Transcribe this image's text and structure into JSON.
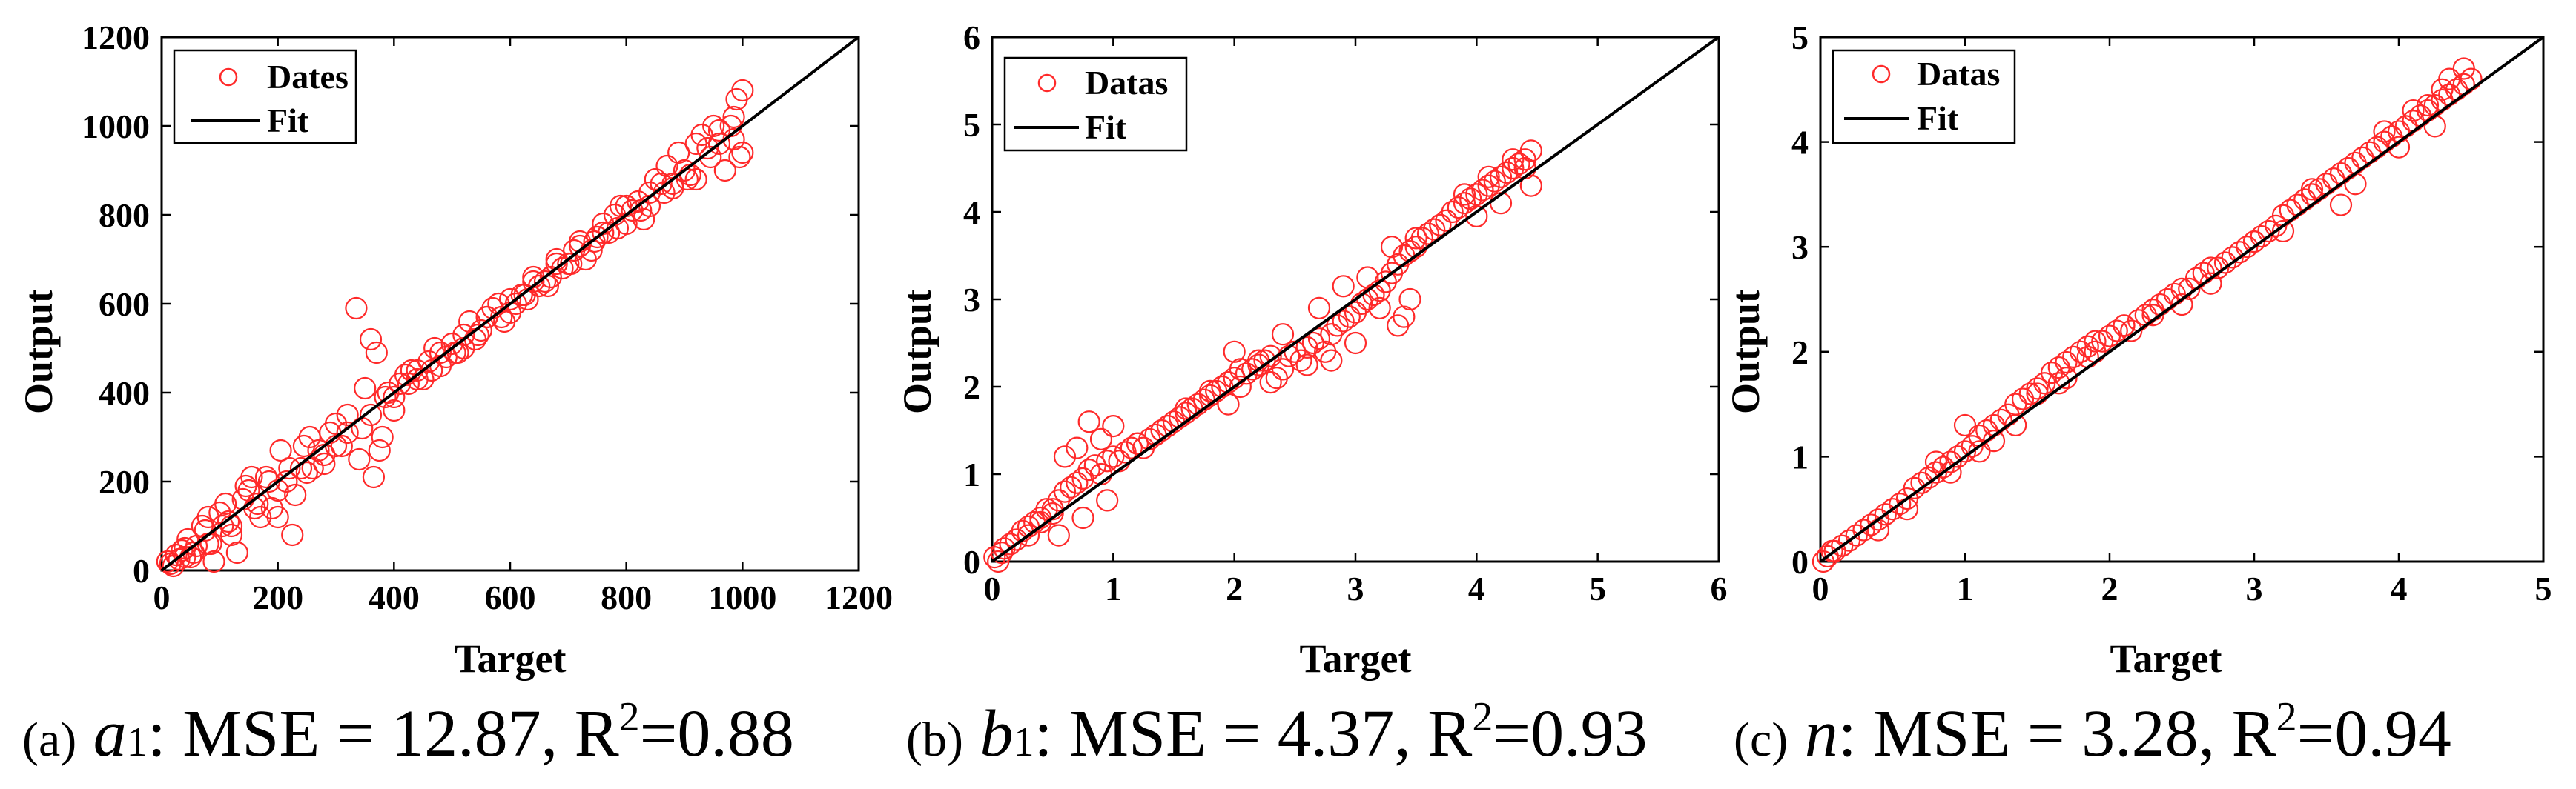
{
  "chart_data": [
    {
      "type": "scatter",
      "panel": "a",
      "xlabel": "Target",
      "ylabel": "Output",
      "xlim": [
        0,
        1200
      ],
      "ylim": [
        0,
        1200
      ],
      "xticks": [
        "0",
        "200",
        "400",
        "600",
        "800",
        "1000",
        "1200"
      ],
      "yticks": [
        "0",
        "200",
        "400",
        "600",
        "800",
        "1000",
        "1200"
      ],
      "legend": {
        "position": "top-left",
        "data_label": "Dates",
        "fit_label": "Fit"
      },
      "fit_line": {
        "x": [
          0,
          1200
        ],
        "y": [
          0,
          1200
        ]
      },
      "series": [
        {
          "name": "Dates",
          "x": [
            10,
            25,
            40,
            55,
            70,
            85,
            100,
            115,
            130,
            150,
            165,
            180,
            200,
            215,
            230,
            245,
            260,
            280,
            300,
            320,
            335,
            350,
            360,
            370,
            380,
            400,
            420,
            440,
            460,
            480,
            500,
            520,
            540,
            560,
            580,
            600,
            620,
            640,
            660,
            680,
            700,
            720,
            740,
            760,
            780,
            800,
            820,
            840,
            860,
            880,
            900,
            920,
            940,
            960,
            980,
            990,
            1000,
            995,
            985,
            970,
            950,
            930,
            910,
            890,
            870,
            850,
            830,
            810,
            790,
            770,
            750,
            730,
            710,
            690,
            670,
            650,
            630,
            610,
            590,
            570,
            550,
            530,
            510,
            490,
            470,
            450,
            430,
            410,
            390,
            375,
            365,
            340,
            310,
            290,
            270,
            250,
            225,
            205,
            190,
            170,
            155,
            140,
            120,
            105,
            90,
            75,
            60,
            45,
            30,
            20,
            35,
            50,
            80,
            110,
            145,
            185,
            220,
            255,
            300,
            345,
            385,
            425,
            465,
            505,
            545,
            585,
            625,
            665,
            705,
            745,
            785,
            825,
            865,
            905,
            945,
            985,
            1000,
            960,
            920,
            880,
            840,
            800,
            760,
            720,
            680,
            640,
            600,
            560,
            520,
            480,
            440,
            400,
            360,
            320,
            280,
            240,
            200,
            160,
            120,
            80,
            40,
            15
          ],
          "y": [
            20,
            35,
            50,
            40,
            100,
            60,
            130,
            110,
            40,
            180,
            150,
            210,
            120,
            200,
            170,
            280,
            230,
            240,
            330,
            350,
            590,
            410,
            520,
            490,
            300,
            360,
            440,
            430,
            470,
            460,
            510,
            500,
            520,
            570,
            600,
            580,
            620,
            660,
            650,
            700,
            690,
            730,
            720,
            760,
            800,
            780,
            830,
            820,
            870,
            860,
            900,
            880,
            950,
            960,
            1000,
            1060,
            1080,
            930,
            970,
            900,
            1000,
            980,
            890,
            940,
            910,
            880,
            790,
            810,
            820,
            760,
            750,
            700,
            720,
            680,
            660,
            640,
            610,
            600,
            560,
            590,
            540,
            560,
            490,
            480,
            500,
            430,
            450,
            420,
            400,
            270,
            210,
            250,
            280,
            310,
            270,
            220,
            80,
            270,
            140,
            120,
            210,
            160,
            80,
            100,
            20,
            90,
            55,
            70,
            25,
            10,
            45,
            30,
            120,
            150,
            190,
            200,
            230,
            300,
            280,
            320,
            390,
            420,
            450,
            490,
            530,
            570,
            620,
            640,
            690,
            740,
            770,
            810,
            850,
            880,
            930,
            1020,
            940,
            990,
            960,
            870,
            850,
            820,
            780,
            740,
            690,
            650,
            610,
            570,
            530,
            490,
            450,
            390,
            350,
            310,
            260,
            230,
            180,
            140,
            100,
            60,
            30,
            15
          ]
        }
      ]
    },
    {
      "type": "scatter",
      "panel": "b",
      "xlabel": "Target",
      "ylabel": "Output",
      "xlim": [
        0,
        6
      ],
      "ylim": [
        0,
        6
      ],
      "xticks": [
        "0",
        "1",
        "2",
        "3",
        "4",
        "5",
        "6"
      ],
      "yticks": [
        "0",
        "1",
        "2",
        "3",
        "4",
        "5",
        "6"
      ],
      "legend": {
        "position": "top-left",
        "data_label": "Datas",
        "fit_label": "Fit"
      },
      "fit_line": {
        "x": [
          0,
          6
        ],
        "y": [
          0,
          6
        ]
      },
      "series": [
        {
          "name": "Datas",
          "x": [
            0.02,
            0.05,
            0.08,
            0.1,
            0.15,
            0.2,
            0.25,
            0.3,
            0.35,
            0.4,
            0.45,
            0.5,
            0.55,
            0.6,
            0.65,
            0.7,
            0.75,
            0.8,
            0.85,
            0.9,
            0.95,
            1.0,
            1.05,
            1.1,
            1.15,
            1.2,
            1.25,
            1.3,
            1.35,
            1.4,
            1.45,
            1.5,
            1.55,
            1.6,
            1.65,
            1.7,
            1.75,
            1.8,
            1.85,
            1.9,
            1.95,
            2.0,
            2.05,
            2.1,
            2.15,
            2.2,
            2.25,
            2.3,
            2.35,
            2.4,
            2.45,
            2.5,
            2.55,
            2.6,
            2.65,
            2.7,
            2.75,
            2.8,
            2.85,
            2.9,
            2.95,
            3.0,
            3.05,
            3.1,
            3.15,
            3.2,
            3.25,
            3.3,
            3.35,
            3.4,
            3.45,
            3.5,
            3.55,
            3.6,
            3.65,
            3.7,
            3.75,
            3.8,
            3.85,
            3.9,
            3.95,
            4.0,
            4.05,
            4.1,
            4.15,
            4.2,
            4.25,
            4.3,
            4.35,
            4.4,
            4.45,
            0.7,
            0.8,
            0.9,
            1.0,
            0.6,
            0.75,
            0.55,
            0.95,
            2.0,
            1.95,
            2.05,
            2.3,
            2.6,
            2.8,
            3.0,
            3.2,
            3.4,
            3.45,
            3.35,
            3.3,
            3.5,
            3.7,
            3.9,
            4.1,
            4.3,
            4.4,
            4.45,
            4.2,
            4.0,
            0.3,
            0.4,
            0.5,
            1.2,
            1.4,
            1.6,
            1.8,
            2.2,
            2.4,
            2.7,
            2.9,
            3.1
          ],
          "y": [
            0.05,
            0.0,
            0.1,
            0.15,
            0.2,
            0.25,
            0.35,
            0.4,
            0.45,
            0.5,
            0.6,
            0.55,
            0.7,
            0.8,
            0.85,
            0.9,
            0.95,
            1.05,
            1.1,
            1.0,
            1.15,
            1.2,
            1.15,
            1.25,
            1.3,
            1.35,
            1.3,
            1.4,
            1.45,
            1.5,
            1.55,
            1.6,
            1.65,
            1.7,
            1.75,
            1.8,
            1.85,
            1.9,
            1.95,
            2.0,
            2.05,
            2.1,
            2.0,
            2.15,
            2.2,
            2.25,
            2.3,
            2.05,
            2.1,
            2.2,
            2.35,
            2.4,
            2.3,
            2.45,
            2.5,
            2.55,
            2.4,
            2.6,
            2.7,
            2.75,
            2.8,
            2.85,
            2.95,
            3.0,
            3.05,
            3.1,
            3.2,
            3.3,
            3.4,
            3.5,
            3.55,
            3.6,
            3.7,
            3.75,
            3.8,
            3.85,
            3.9,
            4.0,
            4.05,
            4.1,
            4.15,
            4.2,
            4.25,
            4.3,
            4.35,
            4.4,
            4.45,
            4.5,
            4.55,
            4.6,
            4.7,
            1.3,
            1.6,
            1.4,
            1.55,
            1.2,
            0.5,
            0.3,
            0.7,
            2.4,
            1.8,
            2.2,
            2.35,
            2.25,
            2.3,
            2.5,
            2.9,
            2.8,
            3.0,
            2.7,
            3.6,
            3.7,
            3.85,
            4.2,
            4.4,
            4.6,
            4.5,
            4.3,
            4.1,
            3.95,
            0.3,
            0.45,
            0.6,
            1.35,
            1.5,
            1.75,
            1.95,
            2.3,
            2.6,
            2.9,
            3.15,
            3.25
          ]
        }
      ]
    },
    {
      "type": "scatter",
      "panel": "c",
      "xlabel": "Target",
      "ylabel": "Output",
      "xlim": [
        0,
        5
      ],
      "ylim": [
        0,
        5
      ],
      "xticks": [
        "0",
        "1",
        "2",
        "3",
        "4",
        "5"
      ],
      "yticks": [
        "0",
        "1",
        "2",
        "3",
        "4",
        "5"
      ],
      "legend": {
        "position": "top-left",
        "data_label": "Datas",
        "fit_label": "Fit"
      },
      "fit_line": {
        "x": [
          0,
          5
        ],
        "y": [
          0,
          5
        ]
      },
      "series": [
        {
          "name": "Datas",
          "x": [
            0.02,
            0.05,
            0.08,
            0.1,
            0.15,
            0.2,
            0.25,
            0.3,
            0.35,
            0.4,
            0.45,
            0.5,
            0.55,
            0.6,
            0.65,
            0.7,
            0.75,
            0.8,
            0.85,
            0.9,
            0.95,
            1.0,
            1.05,
            1.1,
            1.15,
            1.2,
            1.25,
            1.3,
            1.35,
            1.4,
            1.45,
            1.5,
            1.55,
            1.6,
            1.65,
            1.7,
            1.75,
            1.8,
            1.85,
            1.9,
            1.95,
            2.0,
            2.05,
            2.1,
            2.15,
            2.2,
            2.25,
            2.3,
            2.35,
            2.4,
            2.45,
            2.5,
            2.55,
            2.6,
            2.65,
            2.7,
            2.75,
            2.8,
            2.85,
            2.9,
            2.95,
            3.0,
            3.05,
            3.1,
            3.15,
            3.2,
            3.25,
            3.3,
            3.35,
            3.4,
            3.45,
            3.5,
            3.55,
            3.6,
            3.65,
            3.7,
            3.75,
            3.8,
            3.85,
            3.9,
            3.95,
            4.0,
            4.05,
            4.1,
            4.15,
            4.2,
            4.25,
            4.3,
            4.35,
            4.4,
            4.45,
            4.5,
            0.6,
            0.8,
            1.0,
            1.2,
            1.5,
            1.7,
            1.9,
            2.1,
            2.5,
            3.0,
            3.4,
            3.6,
            3.9,
            4.1,
            4.3,
            4.45,
            4.35,
            4.2,
            0.4,
            0.9,
            1.1,
            1.35,
            1.65,
            1.85,
            2.3,
            2.7,
            3.2,
            3.7,
            4.0,
            4.25
          ],
          "y": [
            0.0,
            0.05,
            0.1,
            0.1,
            0.15,
            0.2,
            0.25,
            0.3,
            0.35,
            0.4,
            0.45,
            0.5,
            0.55,
            0.6,
            0.7,
            0.75,
            0.8,
            0.85,
            0.9,
            0.95,
            1.0,
            1.05,
            1.1,
            1.2,
            1.25,
            1.3,
            1.35,
            1.4,
            1.5,
            1.55,
            1.6,
            1.65,
            1.7,
            1.8,
            1.85,
            1.9,
            1.95,
            2.0,
            2.05,
            2.1,
            2.1,
            2.15,
            2.2,
            2.25,
            2.2,
            2.3,
            2.35,
            2.4,
            2.45,
            2.5,
            2.55,
            2.6,
            2.6,
            2.7,
            2.75,
            2.8,
            2.8,
            2.85,
            2.9,
            2.95,
            3.0,
            3.05,
            3.1,
            3.15,
            3.2,
            3.3,
            3.35,
            3.4,
            3.45,
            3.5,
            3.55,
            3.6,
            3.65,
            3.7,
            3.75,
            3.8,
            3.85,
            3.9,
            3.95,
            4.0,
            4.05,
            4.1,
            4.15,
            4.2,
            4.25,
            4.3,
            4.35,
            4.4,
            4.45,
            4.5,
            4.55,
            4.6,
            0.5,
            0.95,
            1.3,
            1.15,
            1.6,
            1.75,
            2.0,
            2.25,
            2.45,
            3.05,
            3.55,
            3.4,
            4.1,
            4.3,
            4.5,
            4.7,
            4.6,
            4.35,
            0.3,
            0.85,
            1.05,
            1.3,
            1.7,
            1.95,
            2.35,
            2.65,
            3.15,
            3.6,
            3.95,
            4.15
          ]
        }
      ]
    }
  ],
  "captions": [
    {
      "label": "(a)",
      "param": "a",
      "param_sub": "1",
      "text": ": MSE = 12.87, R",
      "sup": "2",
      "tail": "=0.88"
    },
    {
      "label": "(b)",
      "param": "b",
      "param_sub": "1",
      "text": ": MSE = 4.37, R",
      "sup": "2",
      "tail": "=0.93"
    },
    {
      "label": "(c)",
      "param": "n",
      "param_sub": "",
      "text": ": MSE = 3.28, R",
      "sup": "2",
      "tail": "=0.94"
    }
  ],
  "colors": {
    "marker": "#ff2a2a",
    "fit": "#000000",
    "axis": "#000000"
  }
}
